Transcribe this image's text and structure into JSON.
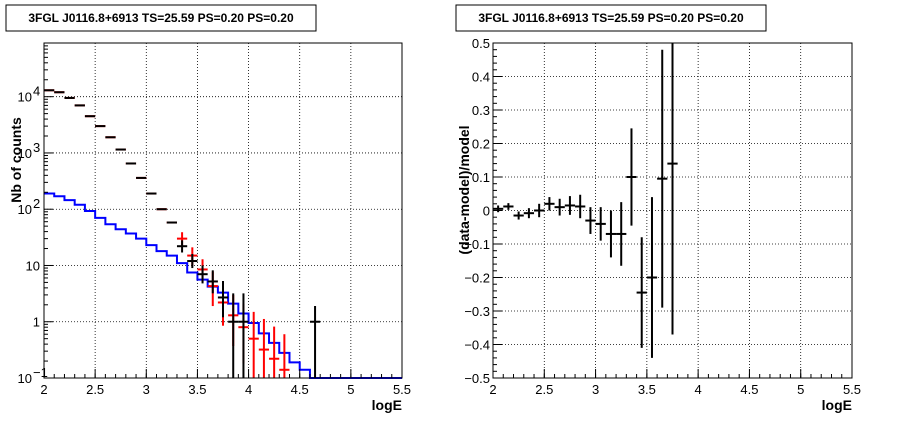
{
  "chart_data": [
    {
      "type": "line",
      "title": "3FGL J0116.8+6913 TS=25.59 PS=0.20 PS=0.20",
      "xlabel": "logE",
      "ylabel": "Nb of counts",
      "xlim": [
        2,
        5.5
      ],
      "ylim": [
        0.1,
        90000
      ],
      "yscale": "log",
      "grid": true,
      "x_ticks": [
        "2",
        "2.5",
        "3",
        "3.5",
        "4",
        "4.5",
        "5",
        "5.5"
      ],
      "y_ticks": [
        {
          "v": 0.1,
          "label": "10",
          "exp": "−1"
        },
        {
          "v": 1,
          "label": "1",
          "exp": ""
        },
        {
          "v": 10,
          "label": "10",
          "exp": ""
        },
        {
          "v": 100,
          "label": "10",
          "exp": "2"
        },
        {
          "v": 1000,
          "label": "10",
          "exp": "3"
        },
        {
          "v": 10000,
          "label": "10",
          "exp": "4"
        }
      ],
      "bin_edges": [
        2.0,
        2.1,
        2.2,
        2.3,
        2.4,
        2.5,
        2.6,
        2.7,
        2.8,
        2.9,
        3.0,
        3.1,
        3.2,
        3.3,
        3.4,
        3.5,
        3.6,
        3.7,
        3.8,
        3.9,
        4.0,
        4.1,
        4.2,
        4.3,
        4.4,
        4.5,
        4.6,
        4.7,
        4.8,
        4.9,
        5.0,
        5.1,
        5.2,
        5.3,
        5.4,
        5.5
      ],
      "series": [
        {
          "kind": "step",
          "color": "#0000ff",
          "values": [
            190,
            170,
            145,
            120,
            93,
            70,
            54,
            44,
            37,
            30,
            23,
            18,
            15,
            11,
            7.5,
            5.6,
            4.2,
            3.3,
            2.1,
            1.4,
            0.95,
            0.62,
            0.42,
            0.28,
            0.19,
            0.14,
            0.1,
            0.1,
            0.1,
            0.1,
            0.1,
            0.1,
            0.1,
            0.1,
            0.1
          ]
        },
        {
          "kind": "markers",
          "color": "#ff0000",
          "x": [
            2.05,
            2.15,
            2.25,
            2.35,
            2.45,
            2.55,
            2.65,
            2.75,
            2.85,
            2.95,
            3.05,
            3.15,
            3.25,
            3.35,
            3.45,
            3.55,
            3.65,
            3.75,
            3.85,
            3.95,
            4.05,
            4.15,
            4.25,
            4.35
          ],
          "y": [
            13000,
            12000,
            9500,
            7000,
            4500,
            3000,
            1900,
            1150,
            650,
            360,
            190,
            100,
            58,
            30,
            15,
            8.5,
            4.3,
            2.2,
            1.3,
            0.8,
            0.5,
            0.32,
            0.22,
            0.14
          ],
          "yerr_low": [
            0,
            0,
            0,
            0,
            0,
            0,
            0,
            0,
            0,
            0,
            0,
            0,
            0,
            8,
            5,
            3.4,
            2.4,
            1.35,
            0.93,
            0.62,
            0.42,
            0.28,
            0.2,
            0.04
          ],
          "yerr_high": [
            0,
            0,
            0,
            0,
            0,
            0,
            0,
            0,
            0,
            0,
            0,
            0,
            0,
            9,
            6,
            4.4,
            3.5,
            2.3,
            1.7,
            1.3,
            1.0,
            0.8,
            0.6,
            0.46
          ]
        },
        {
          "kind": "markers",
          "color": "#000000",
          "x": [
            2.05,
            2.15,
            2.25,
            2.35,
            2.45,
            2.55,
            2.65,
            2.75,
            2.85,
            2.95,
            3.05,
            3.15,
            3.25,
            3.35,
            3.45,
            3.55,
            3.65,
            3.75,
            3.85,
            3.95,
            4.65
          ],
          "y": [
            13000,
            12000,
            9500,
            7000,
            4500,
            3000,
            1900,
            1150,
            650,
            360,
            190,
            100,
            58,
            22,
            12,
            7,
            5.2,
            2.7,
            1.0,
            1.0,
            1.0
          ],
          "yerr_low": [
            0,
            0,
            0,
            0,
            0,
            0,
            0,
            0,
            0,
            0,
            0,
            0,
            0,
            5,
            3,
            2.2,
            2,
            1.5,
            0.9,
            0.9,
            0.9
          ],
          "yerr_high": [
            0,
            0,
            0,
            0,
            0,
            0,
            0,
            0,
            0,
            0,
            0,
            0,
            0,
            6,
            4,
            3,
            3,
            2.6,
            2.2,
            2.2,
            0.9
          ]
        }
      ]
    },
    {
      "type": "scatter",
      "title": "3FGL J0116.8+6913 TS=25.59 PS=0.20 PS=0.20",
      "xlabel": "logE",
      "ylabel": "(data-model)/model",
      "xlim": [
        2,
        5.5
      ],
      "ylim": [
        -0.5,
        0.5
      ],
      "grid": true,
      "x_ticks": [
        "2",
        "2.5",
        "3",
        "3.5",
        "4",
        "4.5",
        "5",
        "5.5"
      ],
      "y_ticks": [
        "−0.5",
        "−0.4",
        "−0.3",
        "−0.2",
        "−0.1",
        "0",
        "0.1",
        "0.2",
        "0.3",
        "0.4",
        "0.5"
      ],
      "series": [
        {
          "color": "#000000",
          "x": [
            2.05,
            2.15,
            2.25,
            2.35,
            2.45,
            2.55,
            2.65,
            2.75,
            2.85,
            2.95,
            3.05,
            3.15,
            3.25,
            3.35,
            3.45,
            3.55,
            3.65,
            3.75
          ],
          "y": [
            0.005,
            0.012,
            -0.015,
            -0.008,
            0.0,
            0.02,
            0.01,
            0.015,
            0.012,
            -0.03,
            -0.04,
            -0.07,
            -0.07,
            0.1,
            -0.245,
            -0.2,
            0.095,
            0.14
          ],
          "yerr": [
            0.01,
            0.01,
            0.012,
            0.015,
            0.02,
            0.02,
            0.025,
            0.028,
            0.035,
            0.04,
            0.05,
            0.07,
            0.095,
            0.145,
            0.165,
            0.24,
            0.385,
            0.51
          ]
        }
      ]
    }
  ]
}
